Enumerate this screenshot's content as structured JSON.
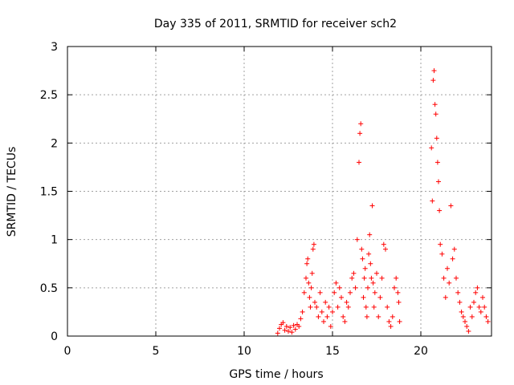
{
  "chart_data": {
    "type": "scatter",
    "title": "Day 335 of 2011, SRMTID for receiver sch2",
    "xlabel": "GPS time / hours",
    "ylabel": "SRMTID / TECUs",
    "xlim": [
      0,
      24
    ],
    "ylim": [
      0,
      3
    ],
    "xticks": [
      0,
      5,
      10,
      15,
      20
    ],
    "xtick_labels": [
      "0",
      "5",
      "10",
      "15",
      "20"
    ],
    "yticks": [
      0,
      0.5,
      1,
      1.5,
      2,
      2.5,
      3
    ],
    "ytick_labels": [
      "0",
      "0.5",
      "1",
      "1.5",
      "2",
      "2.5",
      "3"
    ],
    "grid": true,
    "marker": "+",
    "series": [
      {
        "name": "SRMTID",
        "color": "#ff0000",
        "x": [
          11.9,
          12.0,
          12.1,
          12.2,
          12.3,
          12.4,
          12.5,
          12.6,
          12.7,
          12.8,
          12.9,
          13.0,
          13.1,
          13.2,
          13.3,
          13.4,
          13.5,
          13.55,
          13.6,
          13.65,
          13.7,
          13.75,
          13.8,
          13.85,
          13.9,
          13.95,
          14.0,
          14.1,
          14.2,
          14.3,
          14.4,
          14.5,
          14.6,
          14.7,
          14.8,
          14.9,
          15.0,
          15.1,
          15.2,
          15.3,
          15.4,
          15.5,
          15.6,
          15.7,
          15.8,
          15.9,
          16.0,
          16.1,
          16.2,
          16.3,
          16.4,
          16.5,
          16.55,
          16.6,
          16.65,
          16.7,
          16.75,
          16.8,
          16.85,
          16.9,
          16.95,
          17.0,
          17.05,
          17.1,
          17.15,
          17.2,
          17.25,
          17.3,
          17.35,
          17.4,
          17.5,
          17.6,
          17.7,
          17.8,
          17.9,
          18.0,
          18.1,
          18.2,
          18.3,
          18.4,
          18.5,
          18.6,
          18.7,
          18.75,
          18.8,
          20.6,
          20.65,
          20.7,
          20.75,
          20.8,
          20.85,
          20.9,
          20.95,
          21.0,
          21.05,
          21.1,
          21.2,
          21.3,
          21.4,
          21.5,
          21.6,
          21.7,
          21.8,
          21.9,
          22.0,
          22.1,
          22.2,
          22.3,
          22.4,
          22.5,
          22.6,
          22.7,
          22.8,
          22.9,
          23.0,
          23.1,
          23.2,
          23.3,
          23.4,
          23.5,
          23.6,
          23.7,
          23.8
        ],
        "y": [
          0.03,
          0.08,
          0.12,
          0.14,
          0.06,
          0.1,
          0.05,
          0.09,
          0.04,
          0.11,
          0.07,
          0.12,
          0.1,
          0.18,
          0.25,
          0.45,
          0.6,
          0.75,
          0.8,
          0.55,
          0.4,
          0.3,
          0.5,
          0.65,
          0.9,
          0.95,
          0.35,
          0.3,
          0.2,
          0.45,
          0.25,
          0.15,
          0.35,
          0.2,
          0.3,
          0.1,
          0.25,
          0.45,
          0.55,
          0.3,
          0.5,
          0.4,
          0.2,
          0.15,
          0.35,
          0.3,
          0.45,
          0.6,
          0.65,
          0.5,
          1.0,
          1.8,
          2.1,
          2.2,
          0.9,
          0.8,
          0.4,
          0.6,
          0.7,
          0.3,
          0.2,
          0.5,
          0.85,
          1.05,
          0.75,
          0.6,
          1.35,
          0.55,
          0.3,
          0.45,
          0.65,
          0.2,
          0.4,
          0.6,
          0.95,
          0.9,
          0.3,
          0.15,
          0.1,
          0.2,
          0.5,
          0.6,
          0.45,
          0.35,
          0.15,
          1.95,
          1.4,
          2.65,
          2.75,
          2.4,
          2.3,
          2.05,
          1.8,
          1.6,
          1.3,
          0.95,
          0.85,
          0.6,
          0.4,
          0.7,
          0.55,
          1.35,
          0.8,
          0.9,
          0.6,
          0.45,
          0.35,
          0.25,
          0.2,
          0.15,
          0.1,
          0.05,
          0.3,
          0.2,
          0.35,
          0.45,
          0.5,
          0.3,
          0.25,
          0.4,
          0.3,
          0.2,
          0.15
        ]
      }
    ]
  }
}
